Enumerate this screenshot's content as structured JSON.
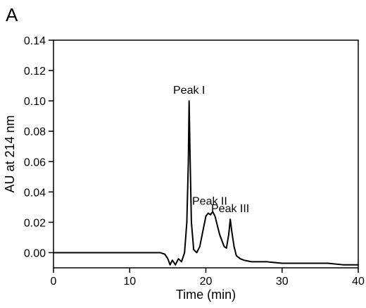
{
  "panel_label": "A",
  "chart_data": {
    "type": "line",
    "xlabel": "Time (min)",
    "ylabel": "AU at 214 nm",
    "xlim": [
      0,
      40
    ],
    "ylim": [
      -0.01,
      0.14
    ],
    "x_ticks": [
      0,
      10,
      20,
      30,
      40
    ],
    "x_tick_labels": [
      "0",
      "10",
      "20",
      "30",
      "40"
    ],
    "y_ticks": [
      0.0,
      0.02,
      0.04,
      0.06,
      0.08,
      0.1,
      0.12,
      0.14
    ],
    "y_tick_labels": [
      "0.00",
      "0.02",
      "0.04",
      "0.06",
      "0.08",
      "0.10",
      "0.12",
      "0.14"
    ],
    "grid": false,
    "legend": "none",
    "line_color": "#000000",
    "annotations": [
      {
        "text": "Peak I",
        "x": 17.8,
        "y": 0.1
      },
      {
        "text": "Peak II",
        "x": 20.5,
        "y": 0.027
      },
      {
        "text": "Peak III",
        "x": 23.2,
        "y": 0.022
      }
    ],
    "series": [
      {
        "x": [
          0,
          2,
          4,
          6,
          8,
          10,
          12,
          14,
          14.6,
          15.0,
          15.3,
          15.6,
          16.0,
          16.4,
          16.8,
          17.2,
          17.5,
          17.7,
          17.8,
          17.9,
          18.1,
          18.4,
          18.8,
          19.2,
          19.6,
          20.0,
          20.3,
          20.6,
          20.9,
          21.2,
          21.5,
          21.8,
          22.1,
          22.4,
          22.7,
          23.0,
          23.2,
          23.4,
          23.7,
          24.0,
          24.5,
          25,
          26,
          28,
          30,
          32,
          34,
          36,
          38,
          40
        ],
        "y": [
          0.0,
          0.0,
          0.0,
          0.0,
          0.0,
          0.0,
          0.0,
          0.0,
          -0.001,
          -0.004,
          -0.008,
          -0.005,
          -0.008,
          -0.004,
          -0.006,
          0.0,
          0.02,
          0.06,
          0.1,
          0.07,
          0.02,
          0.002,
          0.0,
          0.004,
          0.014,
          0.024,
          0.026,
          0.025,
          0.027,
          0.024,
          0.018,
          0.012,
          0.008,
          0.004,
          0.003,
          0.012,
          0.022,
          0.014,
          0.004,
          -0.002,
          -0.004,
          -0.005,
          -0.006,
          -0.006,
          -0.007,
          -0.007,
          -0.007,
          -0.007,
          -0.008,
          -0.008
        ]
      }
    ]
  }
}
